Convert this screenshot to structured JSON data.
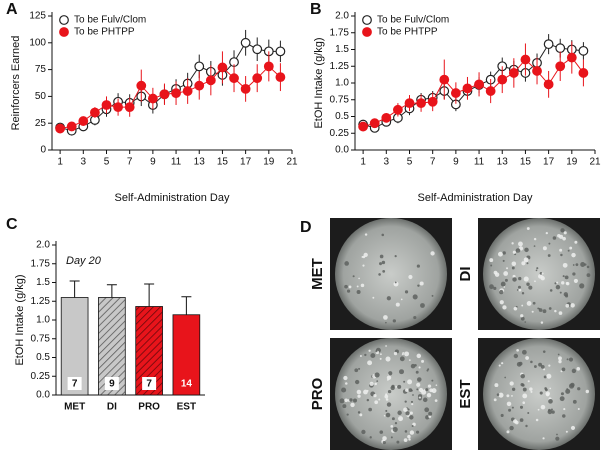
{
  "panels": [
    "A",
    "B",
    "C",
    "D"
  ],
  "chart_data": [
    {
      "type": "line",
      "ylabel": "Reinforcers Earned",
      "xlabel": "Self-Administration Day",
      "xlim": [
        0.3,
        21
      ],
      "xticks": [
        1,
        3,
        5,
        7,
        9,
        11,
        13,
        15,
        17,
        19,
        21
      ],
      "ylim": [
        0,
        125
      ],
      "yticks": [
        0,
        25,
        50,
        75,
        100,
        125
      ],
      "legend": "upper left",
      "x": [
        1,
        2,
        3,
        4,
        5,
        6,
        7,
        8,
        9,
        10,
        11,
        12,
        13,
        14,
        15,
        16,
        17,
        18,
        19,
        20
      ],
      "series": [
        {
          "name": "To be Fulv/Clom",
          "color": "#ffffff",
          "edgecolor": "#222222",
          "values": [
            21,
            18,
            22,
            28,
            38,
            45,
            44,
            50,
            42,
            52,
            57,
            62,
            78,
            73,
            70,
            82,
            100,
            94,
            92,
            92
          ],
          "errors": [
            3,
            3,
            4,
            5,
            7,
            8,
            8,
            9,
            8,
            9,
            9,
            10,
            11,
            10,
            10,
            11,
            12,
            11,
            11,
            10
          ]
        },
        {
          "name": "To be PHTPP",
          "color": "#e8141b",
          "edgecolor": "#e8141b",
          "values": [
            20,
            22,
            27,
            35,
            42,
            40,
            40,
            60,
            48,
            52,
            53,
            55,
            60,
            65,
            77,
            67,
            57,
            67,
            78,
            68
          ],
          "errors": [
            3,
            3,
            4,
            5,
            8,
            8,
            9,
            15,
            10,
            10,
            11,
            12,
            13,
            14,
            15,
            13,
            12,
            13,
            14,
            13
          ]
        }
      ]
    },
    {
      "type": "line",
      "ylabel": "EtOH Intake (g/kg)",
      "xlabel": "Self-Administration Day",
      "xlim": [
        0.3,
        21
      ],
      "xticks": [
        1,
        3,
        5,
        7,
        9,
        11,
        13,
        15,
        17,
        19,
        21
      ],
      "ylim": [
        0,
        2.0
      ],
      "yticks": [
        {
          "value": 0,
          "label": "0.0"
        },
        0.25,
        0.5,
        0.75,
        {
          "value": 1,
          "label": "1.0"
        },
        1.25,
        1.5,
        1.75,
        {
          "value": 2,
          "label": "2.0"
        }
      ],
      "legend": "upper left",
      "x": [
        1,
        2,
        3,
        4,
        5,
        6,
        7,
        8,
        9,
        10,
        11,
        12,
        13,
        14,
        15,
        16,
        17,
        18,
        19,
        20
      ],
      "series": [
        {
          "name": "To be Fulv/Clom",
          "color": "#ffffff",
          "edgecolor": "#222222",
          "values": [
            0.38,
            0.33,
            0.42,
            0.48,
            0.62,
            0.75,
            0.78,
            0.88,
            0.68,
            0.88,
            0.97,
            1.05,
            1.25,
            1.2,
            1.15,
            1.3,
            1.58,
            1.52,
            1.5,
            1.48
          ],
          "errors": [
            0.04,
            0.05,
            0.06,
            0.08,
            0.1,
            0.1,
            0.1,
            0.12,
            0.1,
            0.11,
            0.12,
            0.12,
            0.13,
            0.13,
            0.13,
            0.14,
            0.15,
            0.14,
            0.14,
            0.13
          ]
        },
        {
          "name": "To be PHTPP",
          "color": "#e8141b",
          "edgecolor": "#e8141b",
          "values": [
            0.35,
            0.4,
            0.48,
            0.6,
            0.7,
            0.7,
            0.72,
            1.05,
            0.85,
            0.92,
            0.98,
            0.88,
            1.05,
            1.15,
            1.35,
            1.18,
            0.98,
            1.25,
            1.38,
            1.15
          ],
          "errors": [
            0.04,
            0.05,
            0.07,
            0.1,
            0.12,
            0.13,
            0.14,
            0.3,
            0.16,
            0.17,
            0.18,
            0.18,
            0.2,
            0.22,
            0.24,
            0.2,
            0.2,
            0.22,
            0.24,
            0.2
          ]
        }
      ]
    },
    {
      "type": "bar",
      "ylabel": "EtOH Intake (g/kg)",
      "annotation": "Day 20",
      "ylim": [
        0,
        2.0
      ],
      "yticks": [
        {
          "value": 0,
          "label": "0.0"
        },
        0.25,
        0.5,
        0.75,
        {
          "value": 1,
          "label": "1.0"
        },
        1.25,
        1.5,
        1.75,
        {
          "value": 2,
          "label": "2.0"
        }
      ],
      "categories": [
        "MET",
        "DI",
        "PRO",
        "EST"
      ],
      "values": [
        1.3,
        1.3,
        1.18,
        1.07
      ],
      "errors": [
        0.22,
        0.17,
        0.3,
        0.24
      ],
      "n_labels": [
        "7",
        "9",
        "7",
        "14"
      ],
      "colors": [
        "#c8c8c8",
        "#c8c8c8",
        "#e8141b",
        "#e8141b"
      ],
      "hatched": [
        false,
        true,
        true,
        false
      ]
    }
  ],
  "micrographs": {
    "labels": [
      "MET",
      "DI",
      "PRO",
      "EST"
    ]
  }
}
